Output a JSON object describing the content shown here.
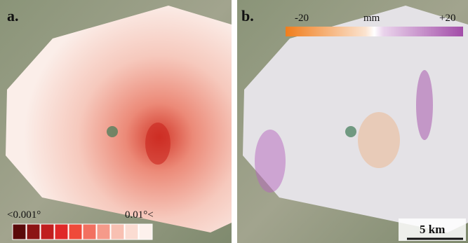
{
  "panels": [
    {
      "label": "a.",
      "legend": {
        "min_label": "<0.001°",
        "max_label": "0.01°<"
      }
    },
    {
      "label": "b.",
      "legend": {
        "min_label": "-20",
        "unit": "mm",
        "max_label": "+20"
      },
      "scale_bar": "5 km"
    }
  ]
}
